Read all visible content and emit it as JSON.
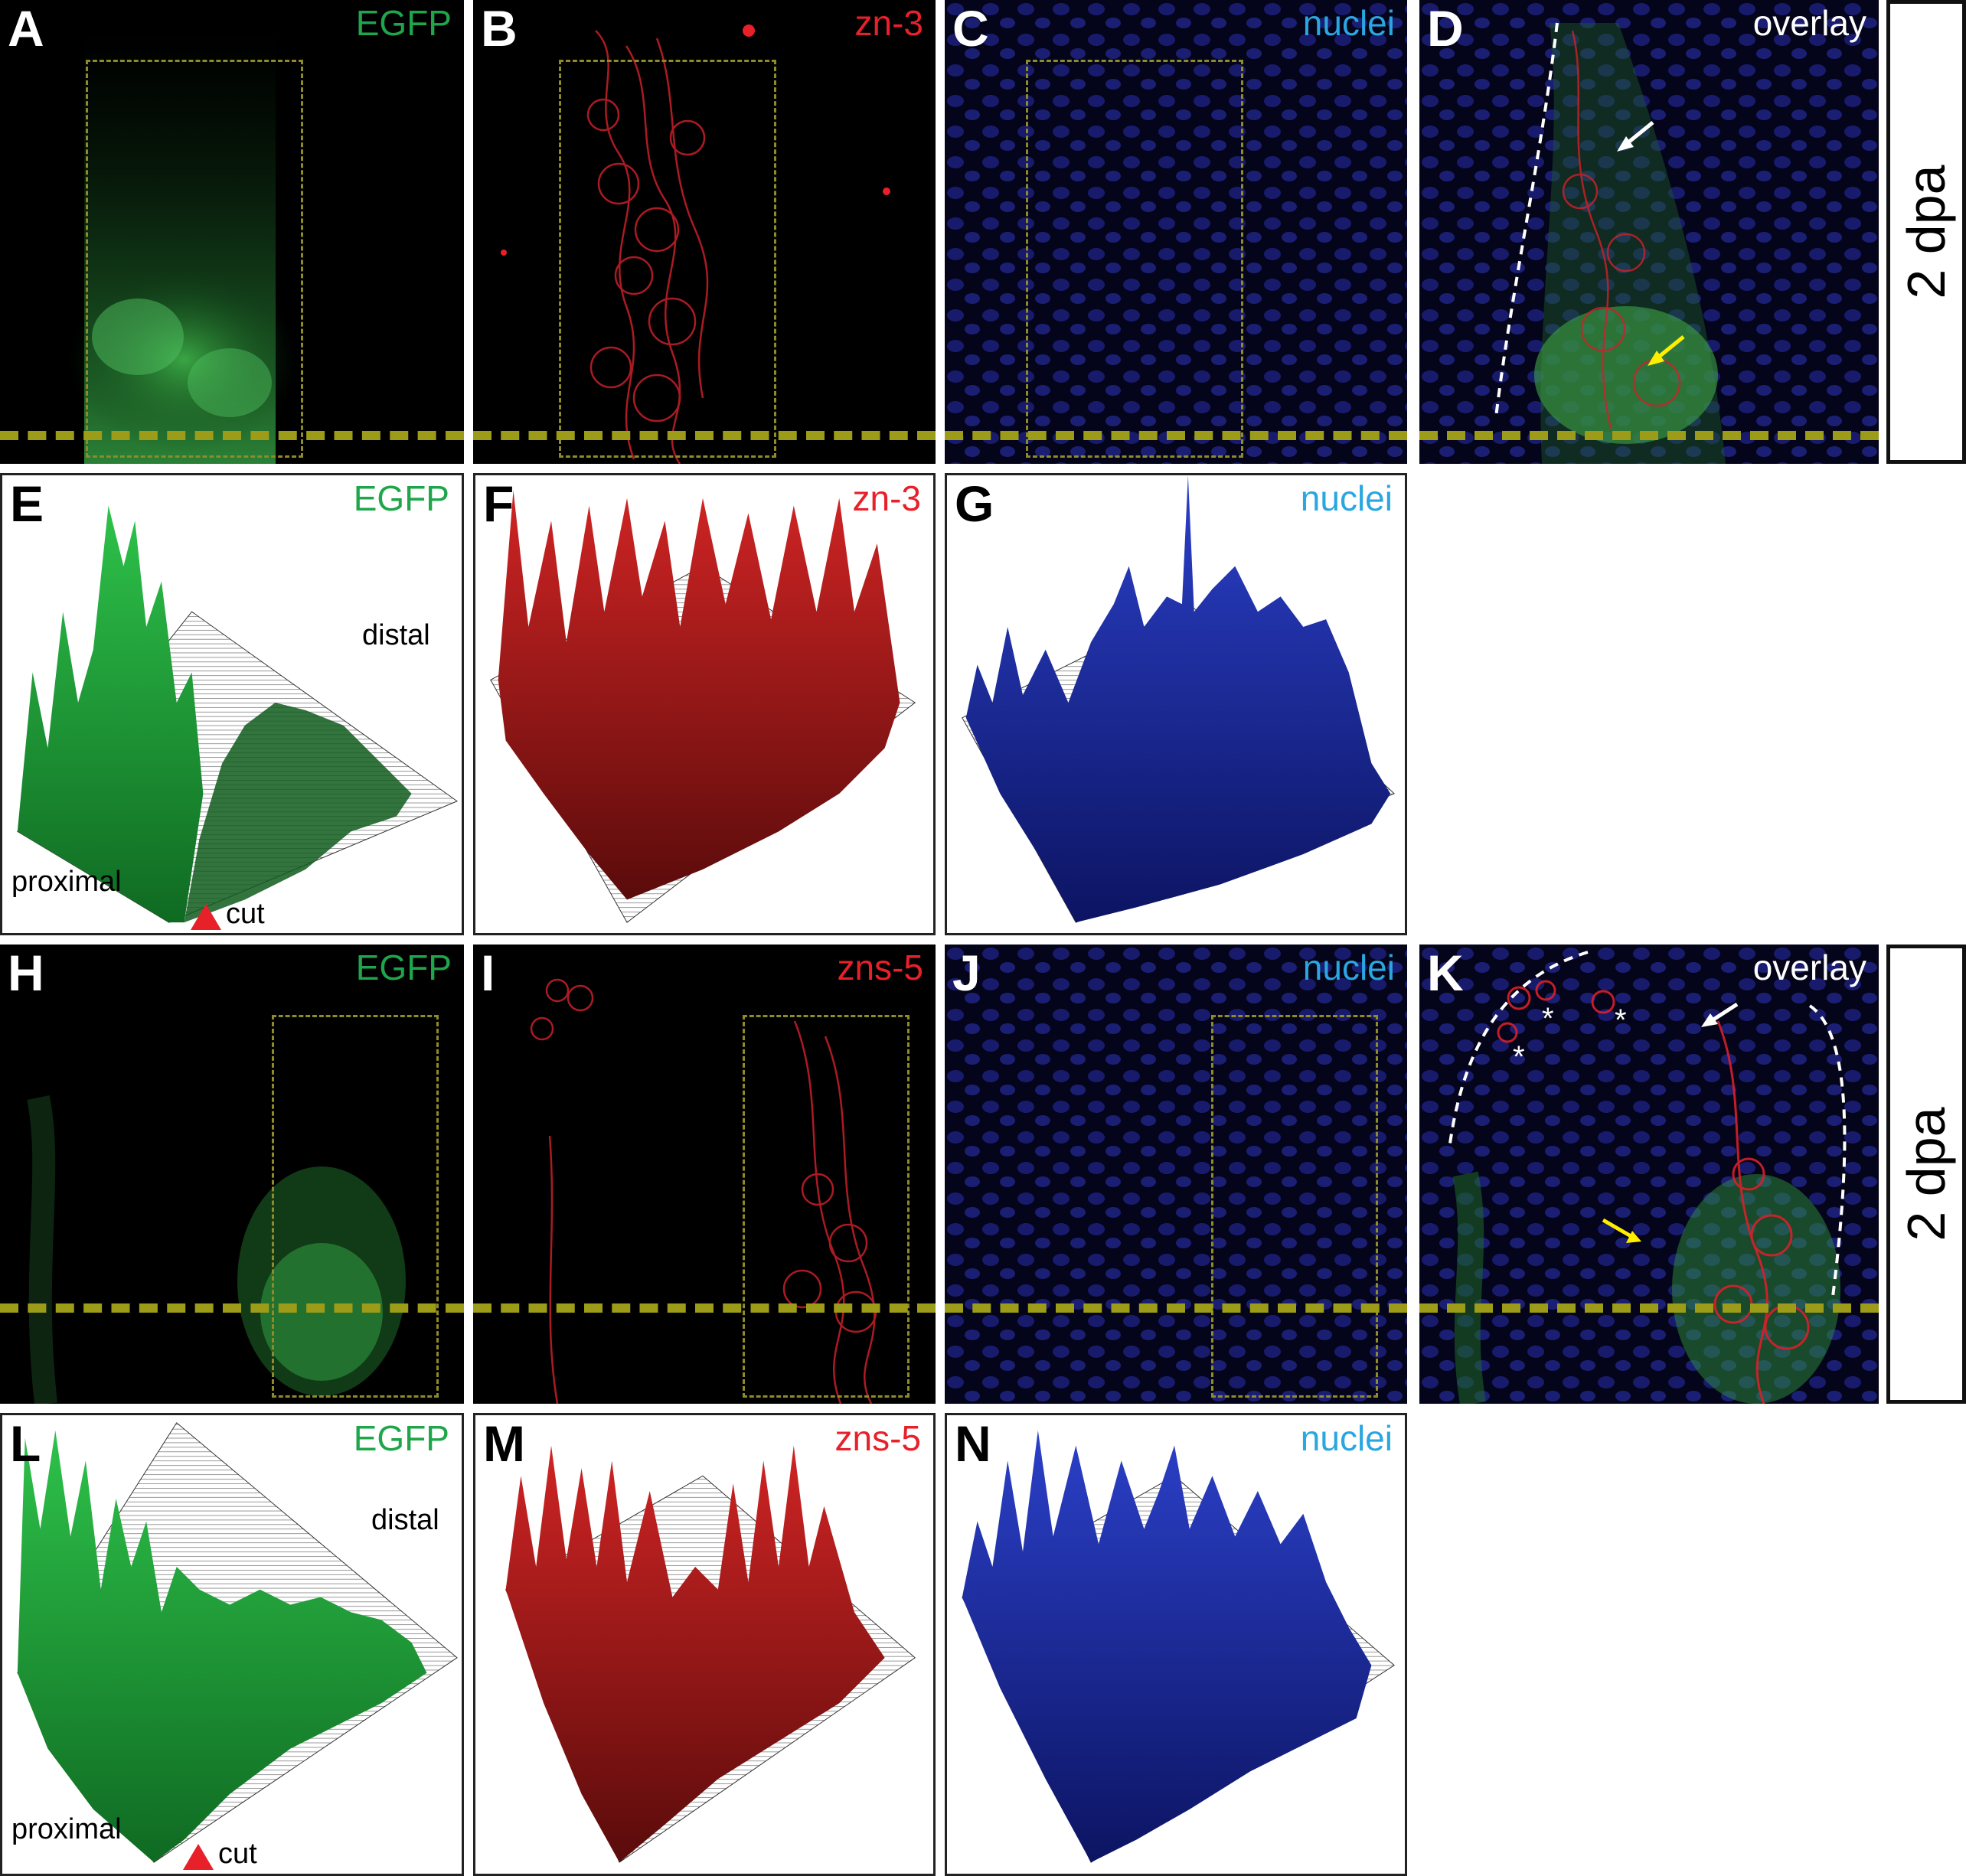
{
  "colors": {
    "egfp": "#1fa64b",
    "red": "#e8202a",
    "nuclei": "#2aa6e0",
    "overlay": "#ffffff",
    "arrow_yellow": "#ffee00",
    "cut_arrow": "#e8202a"
  },
  "row1": {
    "A": {
      "letter": "A",
      "channel": "EGFP"
    },
    "B": {
      "letter": "B",
      "channel": "zn-3"
    },
    "C": {
      "letter": "C",
      "channel": "nuclei"
    },
    "D": {
      "letter": "D",
      "channel": "overlay"
    },
    "side": "2 dpa"
  },
  "row2": {
    "E": {
      "letter": "E",
      "channel": "EGFP",
      "distal": "distal",
      "proximal": "proximal",
      "cut": "cut"
    },
    "F": {
      "letter": "F",
      "channel": "zn-3"
    },
    "G": {
      "letter": "G",
      "channel": "nuclei"
    }
  },
  "row3": {
    "H": {
      "letter": "H",
      "channel": "EGFP"
    },
    "I": {
      "letter": "I",
      "channel": "zns-5"
    },
    "J": {
      "letter": "J",
      "channel": "nuclei"
    },
    "K": {
      "letter": "K",
      "channel": "overlay"
    },
    "side": "2 dpa"
  },
  "row4": {
    "L": {
      "letter": "L",
      "channel": "EGFP",
      "distal": "distal",
      "proximal": "proximal",
      "cut": "cut"
    },
    "M": {
      "letter": "M",
      "channel": "zns-5"
    },
    "N": {
      "letter": "N",
      "channel": "nuclei"
    }
  }
}
